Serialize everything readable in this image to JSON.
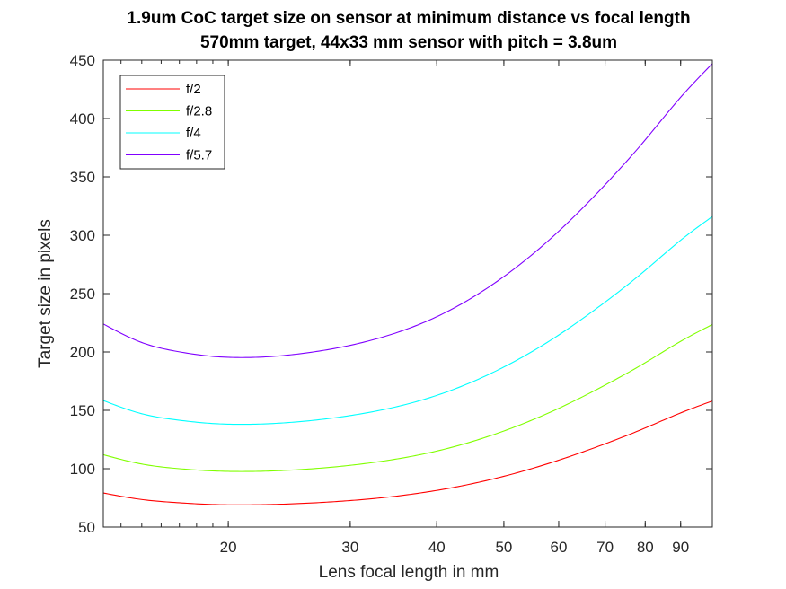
{
  "chart_data": {
    "type": "line",
    "title": "1.9um CoC target size on sensor at minimum distance vs focal length",
    "subtitle": "570mm target, 44x33 mm sensor with pitch = 3.8um",
    "xlabel": "Lens focal length in mm",
    "ylabel": "Target size in pixels",
    "xscale": "log",
    "xlim": [
      13.2,
      100
    ],
    "ylim": [
      50,
      450
    ],
    "xticks": [
      "20",
      "30",
      "40",
      "50",
      "60",
      "70",
      "80",
      "90"
    ],
    "yticks": [
      "50",
      "100",
      "150",
      "200",
      "250",
      "300",
      "350",
      "400",
      "450"
    ],
    "grid": false,
    "legend_position": "top-left",
    "x": [
      13.2,
      15,
      17,
      19,
      21,
      23,
      25,
      30,
      35,
      40,
      50,
      60,
      70,
      80,
      90,
      100
    ],
    "series": [
      {
        "name": "f/2",
        "color": "#ff0000",
        "values": [
          79.2,
          73.6,
          70.8,
          69.3,
          69.0,
          69.3,
          70.0,
          72.7,
          76.5,
          81.4,
          93.5,
          107.3,
          121.3,
          134.9,
          147.8,
          158.0
        ]
      },
      {
        "name": "f/2.8",
        "color": "#80ff00",
        "values": [
          112.0,
          104.0,
          100.0,
          98.1,
          97.6,
          98.0,
          99.0,
          102.9,
          108.3,
          115.1,
          132.3,
          151.7,
          171.6,
          190.8,
          209.1,
          223.5
        ]
      },
      {
        "name": "f/4",
        "color": "#00ffff",
        "values": [
          158.4,
          147.1,
          141.5,
          138.7,
          138.0,
          138.6,
          140.0,
          145.5,
          153.1,
          162.8,
          187.1,
          214.5,
          242.7,
          269.9,
          295.7,
          316.0
        ]
      },
      {
        "name": "f/5.7",
        "color": "#8000ff",
        "values": [
          224.0,
          208.1,
          200.1,
          196.2,
          195.2,
          196.0,
          198.0,
          205.7,
          216.5,
          230.2,
          264.6,
          303.4,
          343.2,
          381.7,
          418.2,
          447.0
        ]
      }
    ]
  }
}
